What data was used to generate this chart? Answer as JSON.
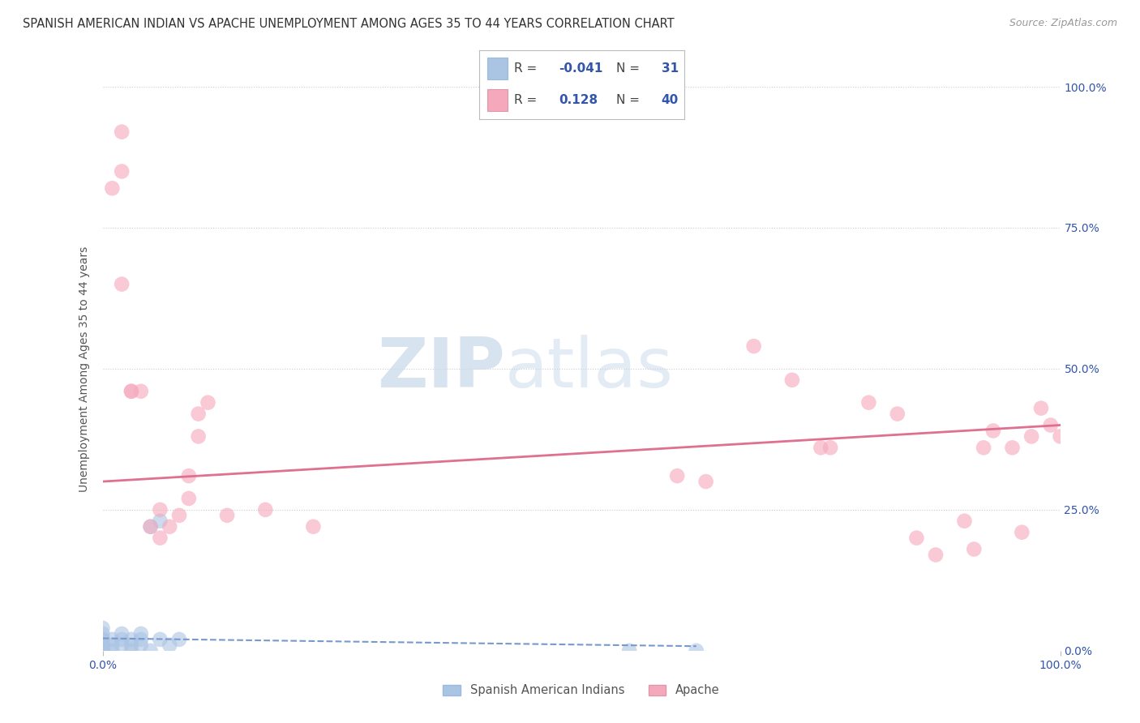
{
  "title": "SPANISH AMERICAN INDIAN VS APACHE UNEMPLOYMENT AMONG AGES 35 TO 44 YEARS CORRELATION CHART",
  "source": "Source: ZipAtlas.com",
  "ylabel": "Unemployment Among Ages 35 to 44 years",
  "xlim": [
    0.0,
    1.0
  ],
  "ylim": [
    0.0,
    1.0
  ],
  "xticklabels": [
    "0.0%",
    "100.0%"
  ],
  "xtick_values": [
    0.0,
    1.0
  ],
  "ytick_right_labels": [
    "0.0%",
    "25.0%",
    "50.0%",
    "75.0%",
    "100.0%"
  ],
  "ytick_right_values": [
    0.0,
    0.25,
    0.5,
    0.75,
    1.0
  ],
  "watermark_zip": "ZIP",
  "watermark_atlas": "atlas",
  "legend_R1": "-0.041",
  "legend_N1": "31",
  "legend_R2": "0.128",
  "legend_N2": "40",
  "series1_label": "Spanish American Indians",
  "series2_label": "Apache",
  "series1_color": "#aac4e4",
  "series2_color": "#f5a8bc",
  "series1_line_color": "#7799cc",
  "series2_line_color": "#e07090",
  "text_color": "#3355aa",
  "label_color": "#555555",
  "background_color": "#ffffff",
  "grid_color": "#cccccc",
  "blue_scatter_x": [
    0.0,
    0.0,
    0.0,
    0.0,
    0.0,
    0.0,
    0.0,
    0.0,
    0.0,
    0.0,
    0.0,
    0.01,
    0.01,
    0.01,
    0.02,
    0.02,
    0.02,
    0.03,
    0.03,
    0.03,
    0.04,
    0.04,
    0.04,
    0.05,
    0.05,
    0.06,
    0.06,
    0.07,
    0.08,
    0.55,
    0.62
  ],
  "blue_scatter_y": [
    0.0,
    0.0,
    0.0,
    0.0,
    0.0,
    0.01,
    0.01,
    0.02,
    0.02,
    0.03,
    0.04,
    0.0,
    0.01,
    0.02,
    0.01,
    0.02,
    0.03,
    0.0,
    0.01,
    0.02,
    0.01,
    0.02,
    0.03,
    0.0,
    0.22,
    0.02,
    0.23,
    0.01,
    0.02,
    0.0,
    0.0
  ],
  "pink_scatter_x": [
    0.01,
    0.02,
    0.02,
    0.03,
    0.04,
    0.05,
    0.06,
    0.06,
    0.07,
    0.08,
    0.09,
    0.1,
    0.1,
    0.11,
    0.13,
    0.17,
    0.22,
    0.6,
    0.63,
    0.68,
    0.72,
    0.75,
    0.76,
    0.8,
    0.83,
    0.85,
    0.87,
    0.9,
    0.91,
    0.92,
    0.93,
    0.95,
    0.96,
    0.97,
    0.98,
    0.99,
    1.0,
    0.02,
    0.03,
    0.09
  ],
  "pink_scatter_y": [
    0.82,
    0.92,
    0.85,
    0.46,
    0.46,
    0.22,
    0.2,
    0.25,
    0.22,
    0.24,
    0.31,
    0.38,
    0.42,
    0.44,
    0.24,
    0.25,
    0.22,
    0.31,
    0.3,
    0.54,
    0.48,
    0.36,
    0.36,
    0.44,
    0.42,
    0.2,
    0.17,
    0.23,
    0.18,
    0.36,
    0.39,
    0.36,
    0.21,
    0.38,
    0.43,
    0.4,
    0.38,
    0.65,
    0.46,
    0.27
  ],
  "blue_trendline_x": [
    0.0,
    0.62
  ],
  "blue_trendline_y": [
    0.022,
    0.008
  ],
  "pink_trendline_x": [
    0.0,
    1.0
  ],
  "pink_trendline_y": [
    0.3,
    0.4
  ],
  "title_fontsize": 10.5,
  "axis_label_fontsize": 10,
  "tick_fontsize": 10,
  "dot_size": 180,
  "dot_alpha": 0.6
}
